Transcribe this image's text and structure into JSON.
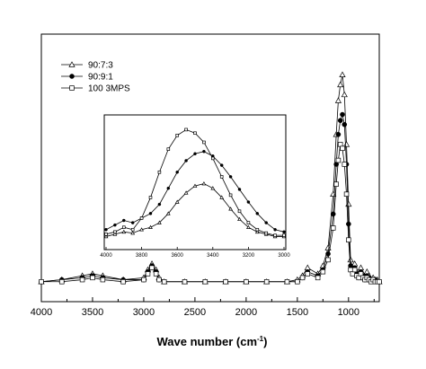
{
  "chart_data": {
    "type": "line",
    "title": "",
    "xlabel": "Wave number (cm",
    "xlabel_sup": "-1",
    "xlabel_close": ")",
    "ylabel": "",
    "x_reversed": true,
    "xlim": [
      4000,
      700
    ],
    "ylim": [
      0,
      1.2
    ],
    "x_ticks": [
      4000,
      3500,
      3000,
      2500,
      2000,
      1500,
      1000
    ],
    "x_tick_labels": [
      "4000",
      "3500",
      "3000",
      "2500",
      "2000",
      "1500",
      "1000"
    ],
    "grid": false,
    "legend_position": "top-left",
    "series": [
      {
        "name": "90:7:3",
        "marker": "triangle-open",
        "x": [
          4000,
          3800,
          3600,
          3500,
          3400,
          3200,
          3000,
          2960,
          2920,
          2880,
          2850,
          2800,
          2600,
          2400,
          2200,
          2000,
          1800,
          1600,
          1500,
          1450,
          1400,
          1300,
          1250,
          1200,
          1150,
          1120,
          1100,
          1080,
          1060,
          1040,
          1020,
          1000,
          980,
          960,
          940,
          920,
          900,
          880,
          860,
          840,
          820,
          800,
          780,
          760,
          740,
          720,
          700
        ],
        "y": [
          0.01,
          0.02,
          0.04,
          0.05,
          0.04,
          0.02,
          0.03,
          0.07,
          0.1,
          0.07,
          0.03,
          0.01,
          0.01,
          0.01,
          0.01,
          0.01,
          0.01,
          0.01,
          0.02,
          0.04,
          0.08,
          0.05,
          0.09,
          0.18,
          0.45,
          0.75,
          0.92,
          1.0,
          1.05,
          0.95,
          0.7,
          0.4,
          0.12,
          0.08,
          0.1,
          0.06,
          0.04,
          0.08,
          0.05,
          0.03,
          0.06,
          0.04,
          0.02,
          0.03,
          0.02,
          0.02,
          0.01
        ]
      },
      {
        "name": "90:9:1",
        "marker": "circle-filled",
        "x": [
          4000,
          3800,
          3600,
          3500,
          3400,
          3200,
          3000,
          2960,
          2920,
          2880,
          2850,
          2800,
          2600,
          2400,
          2200,
          2000,
          1800,
          1600,
          1500,
          1450,
          1400,
          1300,
          1250,
          1200,
          1150,
          1120,
          1100,
          1080,
          1060,
          1040,
          1020,
          1000,
          980,
          960,
          940,
          920,
          900,
          880,
          860,
          840,
          820,
          800,
          780,
          760,
          740,
          720,
          700
        ],
        "y": [
          0.01,
          0.02,
          0.03,
          0.04,
          0.03,
          0.02,
          0.02,
          0.06,
          0.09,
          0.06,
          0.02,
          0.01,
          0.01,
          0.01,
          0.01,
          0.01,
          0.01,
          0.01,
          0.01,
          0.03,
          0.06,
          0.04,
          0.07,
          0.15,
          0.35,
          0.6,
          0.75,
          0.82,
          0.85,
          0.8,
          0.6,
          0.3,
          0.09,
          0.06,
          0.08,
          0.05,
          0.03,
          0.06,
          0.04,
          0.02,
          0.04,
          0.03,
          0.02,
          0.02,
          0.02,
          0.01,
          0.01
        ]
      },
      {
        "name": "100 3MPS",
        "marker": "square-open",
        "x": [
          4000,
          3800,
          3600,
          3500,
          3400,
          3200,
          3000,
          2960,
          2920,
          2880,
          2850,
          2800,
          2600,
          2400,
          2200,
          2000,
          1800,
          1600,
          1500,
          1450,
          1400,
          1300,
          1250,
          1200,
          1150,
          1120,
          1100,
          1080,
          1060,
          1040,
          1020,
          1000,
          980,
          960,
          940,
          920,
          900,
          880,
          860,
          840,
          820,
          800,
          780,
          760,
          740,
          720,
          700
        ],
        "y": [
          0.01,
          0.01,
          0.02,
          0.03,
          0.02,
          0.01,
          0.02,
          0.05,
          0.08,
          0.05,
          0.02,
          0.01,
          0.01,
          0.01,
          0.01,
          0.01,
          0.01,
          0.01,
          0.01,
          0.03,
          0.05,
          0.03,
          0.06,
          0.12,
          0.28,
          0.5,
          0.62,
          0.7,
          0.68,
          0.6,
          0.45,
          0.22,
          0.07,
          0.05,
          0.07,
          0.04,
          0.03,
          0.05,
          0.03,
          0.02,
          0.03,
          0.02,
          0.01,
          0.02,
          0.01,
          0.01,
          0.01
        ]
      }
    ],
    "inset": {
      "type": "line",
      "x_reversed": true,
      "xlim": [
        4000,
        3000
      ],
      "ylim": [
        0,
        1.0
      ],
      "x_ticks": [
        4000,
        3800,
        3600,
        3400,
        3200,
        3000
      ],
      "x_tick_labels": [
        "4000",
        "3800",
        "3600",
        "3400",
        "3200",
        "3000"
      ],
      "series": [
        {
          "name": "90:7:3",
          "marker": "triangle-open",
          "x": [
            4000,
            3950,
            3900,
            3850,
            3800,
            3750,
            3700,
            3650,
            3600,
            3550,
            3500,
            3450,
            3400,
            3350,
            3300,
            3250,
            3200,
            3150,
            3100,
            3050,
            3000
          ],
          "y": [
            0.02,
            0.04,
            0.06,
            0.05,
            0.08,
            0.1,
            0.14,
            0.22,
            0.32,
            0.4,
            0.46,
            0.48,
            0.44,
            0.36,
            0.26,
            0.17,
            0.1,
            0.06,
            0.04,
            0.02,
            0.02
          ]
        },
        {
          "name": "90:9:1",
          "marker": "circle-filled",
          "x": [
            4000,
            3950,
            3900,
            3850,
            3800,
            3750,
            3700,
            3650,
            3600,
            3550,
            3500,
            3450,
            3400,
            3350,
            3300,
            3250,
            3200,
            3150,
            3100,
            3050,
            3000
          ],
          "y": [
            0.08,
            0.12,
            0.16,
            0.14,
            0.18,
            0.22,
            0.3,
            0.44,
            0.58,
            0.68,
            0.74,
            0.76,
            0.72,
            0.64,
            0.54,
            0.43,
            0.32,
            0.22,
            0.14,
            0.08,
            0.06
          ]
        },
        {
          "name": "100 3MPS",
          "marker": "square-open",
          "x": [
            4000,
            3950,
            3900,
            3850,
            3800,
            3750,
            3700,
            3650,
            3600,
            3550,
            3500,
            3450,
            3400,
            3350,
            3300,
            3250,
            3200,
            3150,
            3100,
            3050,
            3000
          ],
          "y": [
            0.04,
            0.06,
            0.1,
            0.08,
            0.18,
            0.36,
            0.58,
            0.78,
            0.9,
            0.95,
            0.92,
            0.84,
            0.7,
            0.54,
            0.38,
            0.24,
            0.14,
            0.08,
            0.05,
            0.03,
            0.03
          ]
        }
      ]
    }
  }
}
